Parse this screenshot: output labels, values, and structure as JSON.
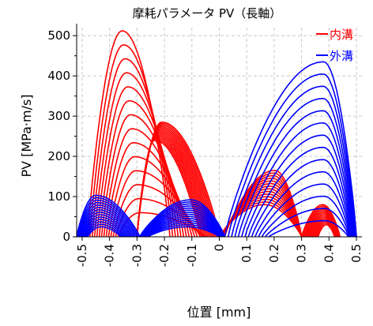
{
  "chart_data": {
    "type": "line",
    "title": "摩耗パラメータ PV（長軸）",
    "xlabel": "位置 [mm]",
    "ylabel": "PV [MPa·m/s]",
    "xlim": [
      -0.52,
      0.52
    ],
    "ylim": [
      0,
      520
    ],
    "x_ticks": [
      "-0.5",
      "-0.4",
      "-0.3",
      "-0.2",
      "-0.1",
      "0",
      "0.1",
      "0.2",
      "0.3",
      "0.4",
      "0.5"
    ],
    "x_tick_values": [
      -0.5,
      -0.4,
      -0.3,
      -0.2,
      -0.1,
      0,
      0.1,
      0.2,
      0.3,
      0.4,
      0.5
    ],
    "y_ticks": [
      "0",
      "100",
      "200",
      "300",
      "400",
      "500"
    ],
    "y_tick_values": [
      0,
      100,
      200,
      300,
      400,
      500
    ],
    "grid": true,
    "legend_position": "top-right",
    "series": [
      {
        "name": "内溝",
        "color": "#ff0000",
        "curve_count": 14,
        "peak_positions_mm": [
          -0.35,
          -0.22,
          0.17,
          0.41
        ],
        "peak_max_values": [
          512,
          285,
          165,
          80
        ],
        "zero_positions_mm": [
          -0.48,
          -0.05,
          0.0,
          0.3,
          0.44
        ]
      },
      {
        "name": "外溝",
        "color": "#0000ff",
        "curve_count": 14,
        "peak_positions_mm": [
          -0.45,
          -0.12,
          0.4
        ],
        "peak_max_values": [
          103,
          92,
          435
        ],
        "zero_positions_mm": [
          -0.52,
          -0.29,
          0.02,
          0.5
        ]
      }
    ]
  }
}
